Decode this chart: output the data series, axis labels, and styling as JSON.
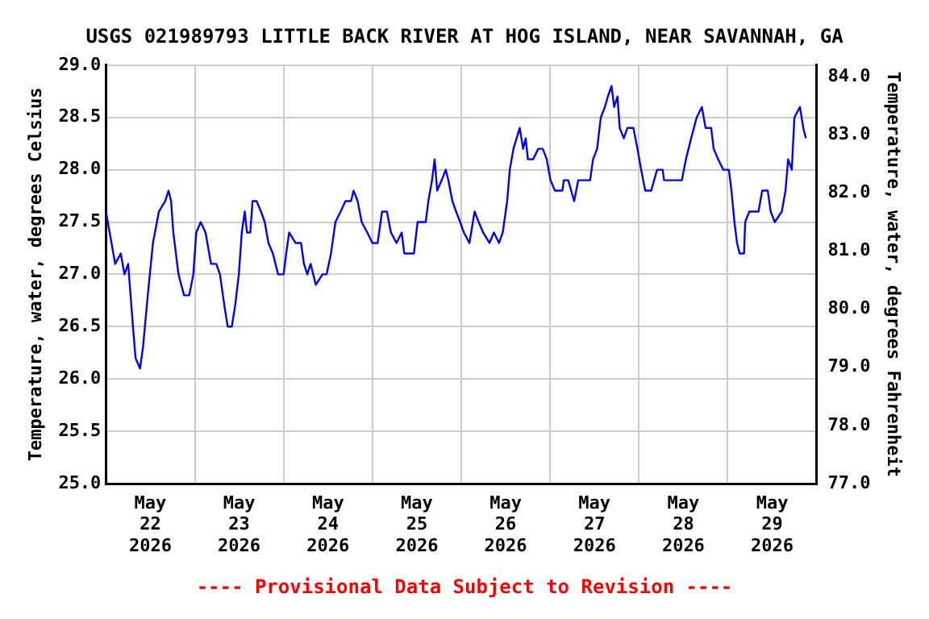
{
  "chart_data": {
    "type": "line",
    "title": "USGS 021989793 LITTLE BACK RIVER AT HOG ISLAND, NEAR SAVANNAH, GA",
    "ylabel": "Temperature, water, degrees Celsius",
    "y2label": "Temperature, water, degrees Fahrenheit",
    "annotations": [
      "---- Provisional Data Subject to Revision ----"
    ],
    "x": [
      "2026-05-22T00:00",
      "2026-05-22T01:00",
      "2026-05-22T02:30",
      "2026-05-22T04:00",
      "2026-05-22T05:00",
      "2026-05-22T06:00",
      "2026-05-22T07:18",
      "2026-05-22T08:00",
      "2026-05-22T09:12",
      "2026-05-22T10:00",
      "2026-05-22T11:18",
      "2026-05-22T12:42",
      "2026-05-22T14:18",
      "2026-05-22T16:00",
      "2026-05-22T16:54",
      "2026-05-22T17:36",
      "2026-05-22T18:12",
      "2026-05-22T19:36",
      "2026-05-22T21:06",
      "2026-05-22T22:30",
      "2026-05-22T23:36",
      "2026-05-23T00:24",
      "2026-05-23T01:36",
      "2026-05-23T02:54",
      "2026-05-23T04:24",
      "2026-05-23T05:48",
      "2026-05-23T06:48",
      "2026-05-23T08:00",
      "2026-05-23T08:54",
      "2026-05-23T10:00",
      "2026-05-23T10:54",
      "2026-05-23T11:54",
      "2026-05-23T12:42",
      "2026-05-23T13:30",
      "2026-05-23T14:06",
      "2026-05-23T15:00",
      "2026-05-23T15:36",
      "2026-05-23T16:42",
      "2026-05-23T17:54",
      "2026-05-23T18:54",
      "2026-05-23T19:54",
      "2026-05-23T21:06",
      "2026-05-23T22:30",
      "2026-05-24T00:00",
      "2026-05-24T00:42",
      "2026-05-24T01:30",
      "2026-05-24T03:12",
      "2026-05-24T04:42",
      "2026-05-24T05:30",
      "2026-05-24T06:24",
      "2026-05-24T07:18",
      "2026-05-24T08:42",
      "2026-05-24T10:30",
      "2026-05-24T11:36",
      "2026-05-24T12:48",
      "2026-05-24T14:00",
      "2026-05-24T15:24",
      "2026-05-24T16:42",
      "2026-05-24T18:12",
      "2026-05-24T18:54",
      "2026-05-24T20:00",
      "2026-05-24T21:06",
      "2026-05-24T22:36",
      "2026-05-25T00:00",
      "2026-05-25T01:24",
      "2026-05-25T02:36",
      "2026-05-25T03:54",
      "2026-05-25T05:00",
      "2026-05-25T06:30",
      "2026-05-25T07:54",
      "2026-05-25T08:36",
      "2026-05-25T11:12",
      "2026-05-25T12:12",
      "2026-05-25T14:24",
      "2026-05-25T15:06",
      "2026-05-25T16:06",
      "2026-05-25T16:48",
      "2026-05-25T17:30",
      "2026-05-25T18:42",
      "2026-05-25T19:48",
      "2026-05-25T20:30",
      "2026-05-25T21:36",
      "2026-05-25T22:36",
      "2026-05-25T23:42",
      "2026-05-26T00:42",
      "2026-05-26T02:12",
      "2026-05-26T03:36",
      "2026-05-26T04:42",
      "2026-05-26T05:54",
      "2026-05-26T07:36",
      "2026-05-26T08:48",
      "2026-05-26T10:12",
      "2026-05-26T11:12",
      "2026-05-26T12:24",
      "2026-05-26T13:06",
      "2026-05-26T14:06",
      "2026-05-26T15:48",
      "2026-05-26T16:42",
      "2026-05-26T17:24",
      "2026-05-26T18:00",
      "2026-05-26T19:24",
      "2026-05-26T20:48",
      "2026-05-26T22:00",
      "2026-05-26T23:06",
      "2026-05-27T00:06",
      "2026-05-27T01:18",
      "2026-05-27T03:18",
      "2026-05-27T03:42",
      "2026-05-27T04:54",
      "2026-05-27T06:30",
      "2026-05-27T07:36",
      "2026-05-27T10:48",
      "2026-05-27T11:36",
      "2026-05-27T12:42",
      "2026-05-27T13:42",
      "2026-05-27T14:48",
      "2026-05-27T15:36",
      "2026-05-27T16:36",
      "2026-05-27T17:18",
      "2026-05-27T18:12",
      "2026-05-27T18:48",
      "2026-05-27T19:54",
      "2026-05-27T20:54",
      "2026-05-27T22:30",
      "2026-05-27T23:36",
      "2026-05-28T00:36",
      "2026-05-28T01:42",
      "2026-05-28T03:18",
      "2026-05-28T04:54",
      "2026-05-28T06:24",
      "2026-05-28T06:48",
      "2026-05-28T11:36",
      "2026-05-28T12:42",
      "2026-05-28T14:06",
      "2026-05-28T15:36",
      "2026-05-28T17:00",
      "2026-05-28T18:00",
      "2026-05-28T19:30",
      "2026-05-28T20:12",
      "2026-05-28T21:24",
      "2026-05-28T22:48",
      "2026-05-29T00:18",
      "2026-05-29T01:00",
      "2026-05-29T01:48",
      "2026-05-29T02:30",
      "2026-05-29T03:12",
      "2026-05-29T04:24",
      "2026-05-29T04:42",
      "2026-05-29T05:48",
      "2026-05-29T08:18",
      "2026-05-29T09:18",
      "2026-05-29T10:48",
      "2026-05-29T11:36",
      "2026-05-29T12:42",
      "2026-05-29T14:36",
      "2026-05-29T15:36",
      "2026-05-29T16:18",
      "2026-05-29T17:18",
      "2026-05-29T18:00",
      "2026-05-29T19:30",
      "2026-05-29T20:24",
      "2026-05-29T21:06"
    ],
    "series": [
      {
        "color": "#0000ff",
        "values": [
          27.6,
          27.4,
          27.1,
          27.2,
          27.0,
          27.1,
          26.5,
          26.2,
          26.1,
          26.3,
          26.8,
          27.3,
          27.6,
          27.7,
          27.8,
          27.7,
          27.4,
          27.0,
          26.8,
          26.8,
          27.0,
          27.4,
          27.5,
          27.4,
          27.1,
          27.1,
          27.0,
          26.7,
          26.5,
          26.5,
          26.7,
          27.0,
          27.4,
          27.6,
          27.4,
          27.4,
          27.7,
          27.7,
          27.6,
          27.5,
          27.3,
          27.2,
          27.0,
          27.0,
          27.2,
          27.4,
          27.3,
          27.3,
          27.1,
          27.0,
          27.1,
          26.9,
          27.0,
          27.0,
          27.2,
          27.5,
          27.6,
          27.7,
          27.7,
          27.8,
          27.7,
          27.5,
          27.4,
          27.3,
          27.3,
          27.6,
          27.6,
          27.4,
          27.3,
          27.4,
          27.2,
          27.2,
          27.5,
          27.5,
          27.7,
          27.9,
          28.1,
          27.8,
          27.9,
          28.0,
          27.9,
          27.7,
          27.6,
          27.5,
          27.4,
          27.3,
          27.6,
          27.5,
          27.4,
          27.3,
          27.4,
          27.3,
          27.4,
          27.7,
          28.0,
          28.2,
          28.4,
          28.2,
          28.3,
          28.1,
          28.1,
          28.2,
          28.2,
          28.1,
          27.9,
          27.8,
          27.8,
          27.9,
          27.9,
          27.7,
          27.9,
          27.9,
          28.1,
          28.2,
          28.5,
          28.6,
          28.7,
          28.8,
          28.6,
          28.7,
          28.4,
          28.3,
          28.4,
          28.4,
          28.2,
          28.0,
          27.8,
          27.8,
          28.0,
          28.0,
          27.9,
          27.9,
          28.1,
          28.3,
          28.5,
          28.6,
          28.4,
          28.4,
          28.2,
          28.1,
          28.0,
          28.0,
          27.8,
          27.5,
          27.3,
          27.2,
          27.2,
          27.5,
          27.6,
          27.6,
          27.8,
          27.8,
          27.6,
          27.5,
          27.6,
          27.8,
          28.1,
          28.0,
          28.5,
          28.6,
          28.4,
          28.3
        ]
      }
    ],
    "xlim": [
      "2026-05-22T00:00",
      "2026-05-30T00:00"
    ],
    "xticks": [
      {
        "value": "2026-05-22T12:00",
        "label": "May\n22\n2026"
      },
      {
        "value": "2026-05-23T00:00",
        "label": null
      },
      {
        "value": "2026-05-23T12:00",
        "label": "May\n23\n2026"
      },
      {
        "value": "2026-05-24T00:00",
        "label": null
      },
      {
        "value": "2026-05-24T12:00",
        "label": "May\n24\n2026"
      },
      {
        "value": "2026-05-25T00:00",
        "label": null
      },
      {
        "value": "2026-05-25T12:00",
        "label": "May\n25\n2026"
      },
      {
        "value": "2026-05-26T00:00",
        "label": null
      },
      {
        "value": "2026-05-26T12:00",
        "label": "May\n26\n2026"
      },
      {
        "value": "2026-05-27T00:00",
        "label": null
      },
      {
        "value": "2026-05-27T12:00",
        "label": "May\n27\n2026"
      },
      {
        "value": "2026-05-28T00:00",
        "label": null
      },
      {
        "value": "2026-05-28T12:00",
        "label": "May\n28\n2026"
      },
      {
        "value": "2026-05-29T00:00",
        "label": null
      },
      {
        "value": "2026-05-29T12:00",
        "label": "May\n29\n2026"
      }
    ],
    "ylim": [
      25,
      29
    ],
    "yticks": [
      {
        "value": 25,
        "label": "25.0"
      },
      {
        "value": 25.5,
        "label": "25.5"
      },
      {
        "value": 26,
        "label": "26.0"
      },
      {
        "value": 26.5,
        "label": "26.5"
      },
      {
        "value": 27,
        "label": "27.0"
      },
      {
        "value": 27.5,
        "label": "27.5"
      },
      {
        "value": 28,
        "label": "28.0"
      },
      {
        "value": 28.5,
        "label": "28.5"
      },
      {
        "value": 29,
        "label": "29.0"
      }
    ],
    "y2lim": [
      77,
      84.2
    ],
    "y2ticks": [
      {
        "value": 77,
        "label": "77.0"
      },
      {
        "value": 78,
        "label": "78.0"
      },
      {
        "value": 79,
        "label": "79.0"
      },
      {
        "value": 80,
        "label": "80.0"
      },
      {
        "value": 81,
        "label": "81.0"
      },
      {
        "value": 82,
        "label": "82.0"
      },
      {
        "value": 83,
        "label": "83.0"
      },
      {
        "value": 84,
        "label": "84.0"
      }
    ],
    "grid": true,
    "legend": false,
    "marker": "none",
    "line_style": "solid"
  }
}
